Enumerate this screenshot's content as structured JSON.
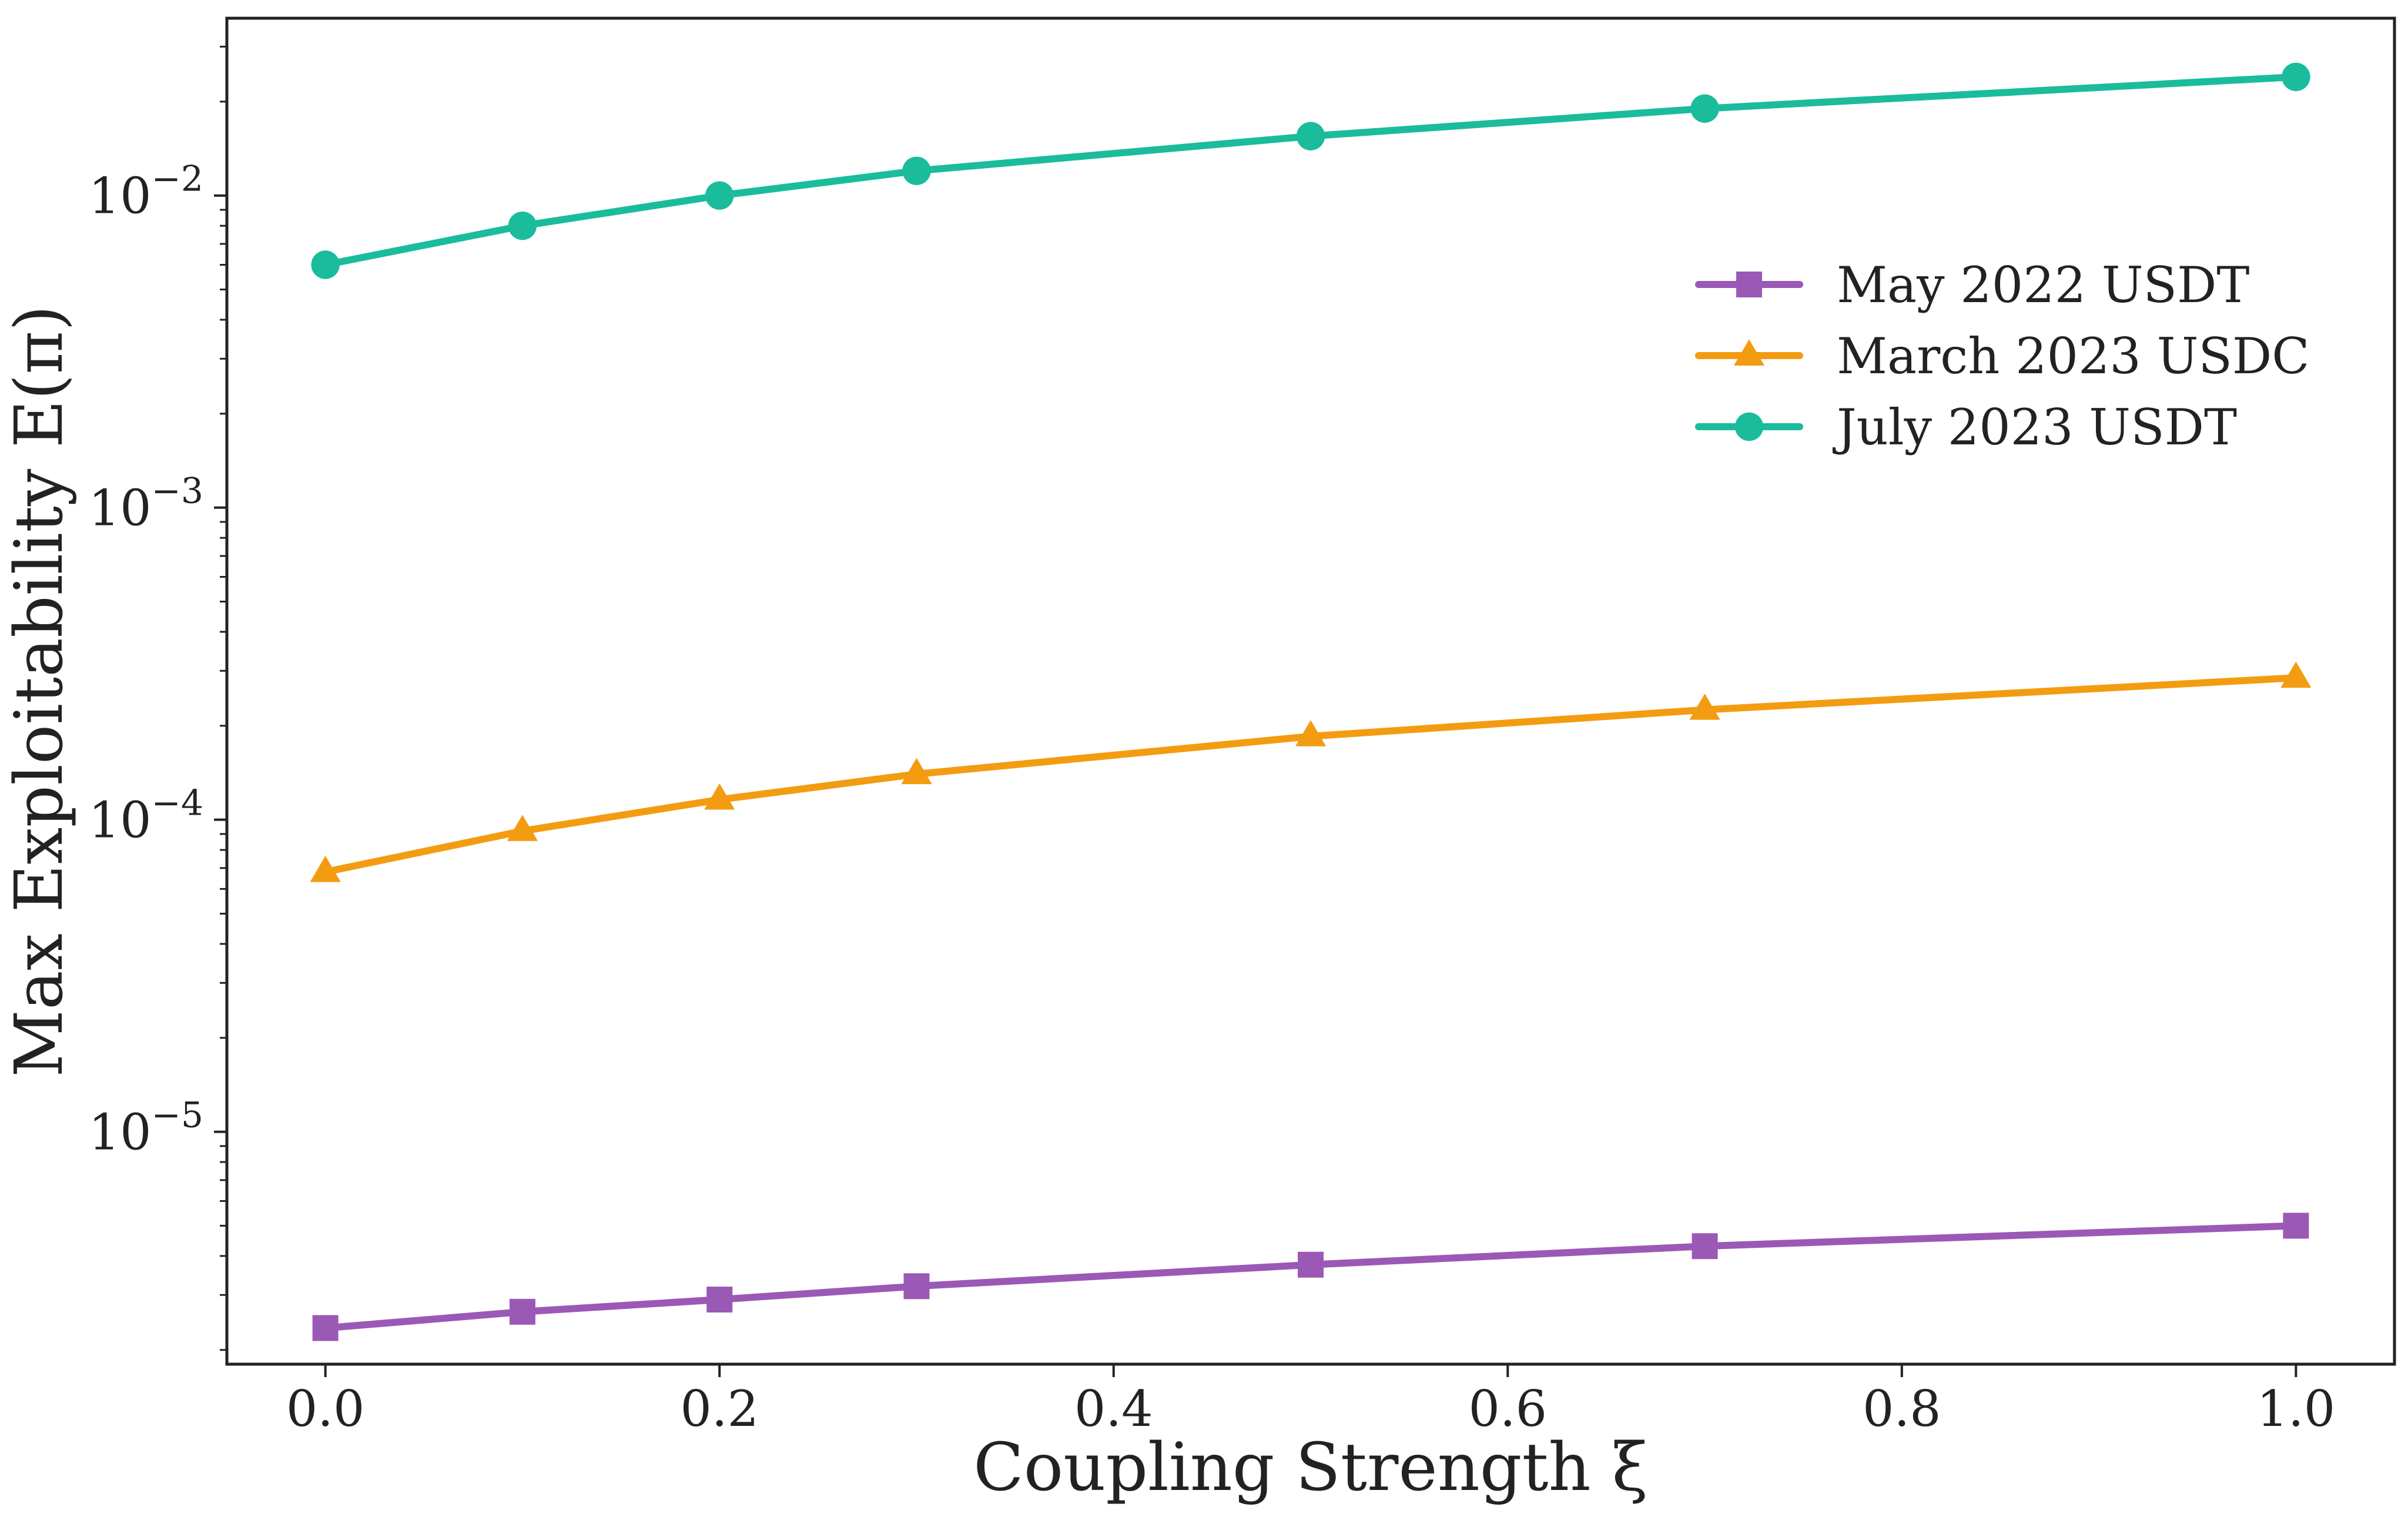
{
  "chart_data": {
    "type": "line",
    "title": "",
    "xlabel": "Coupling Strength ξ",
    "ylabel": "Max Exploitability E(π)",
    "x": [
      0.0,
      0.1,
      0.2,
      0.3,
      0.5,
      0.7,
      1.0
    ],
    "xlim": [
      -0.05,
      1.05
    ],
    "ylim": [
      1.8e-06,
      0.037
    ],
    "yscale": "log",
    "grid": false,
    "legend_position": "upper-right",
    "xticks": [
      {
        "value": 0.0,
        "label": "0.0"
      },
      {
        "value": 0.2,
        "label": "0.2"
      },
      {
        "value": 0.4,
        "label": "0.4"
      },
      {
        "value": 0.6,
        "label": "0.6"
      },
      {
        "value": 0.8,
        "label": "0.8"
      },
      {
        "value": 1.0,
        "label": "1.0"
      }
    ],
    "yticks": [
      {
        "value": 1e-05,
        "base": "10",
        "exp": "−5"
      },
      {
        "value": 0.0001,
        "base": "10",
        "exp": "−4"
      },
      {
        "value": 0.001,
        "base": "10",
        "exp": "−3"
      },
      {
        "value": 0.01,
        "base": "10",
        "exp": "−2"
      }
    ],
    "series": [
      {
        "name": "May 2022 USDT",
        "color": "#9b59b6",
        "marker": "square",
        "values": [
          2.35e-06,
          2.65e-06,
          2.9e-06,
          3.2e-06,
          3.75e-06,
          4.3e-06,
          5e-06
        ]
      },
      {
        "name": "March 2023 USDC",
        "color": "#f39c12",
        "marker": "triangle",
        "values": [
          6.8e-05,
          9.2e-05,
          0.000116,
          0.00014,
          0.000185,
          0.000225,
          0.000285
        ]
      },
      {
        "name": "July 2023 USDT",
        "color": "#1abc9c",
        "marker": "circle",
        "values": [
          0.006,
          0.008,
          0.01,
          0.012,
          0.0155,
          0.019,
          0.024
        ]
      }
    ]
  }
}
